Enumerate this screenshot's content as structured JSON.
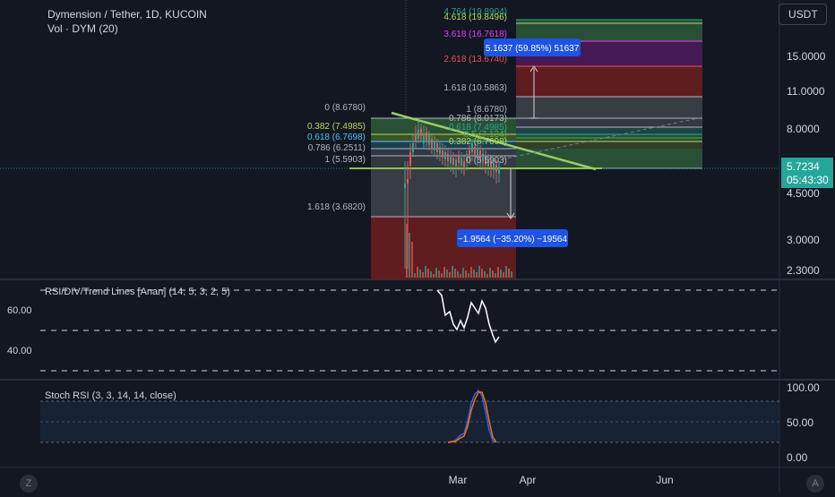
{
  "header": {
    "title": "Dymension / Tether, 1D, KUCOIN",
    "volume": "Vol · DYM (20)",
    "currency_button": "USDT"
  },
  "price_axis": {
    "ticks": [
      "15.0000",
      "11.0000",
      "8.0000",
      "4.5000",
      "3.0000",
      "2.3000"
    ],
    "current_price": "5.7234",
    "countdown": "05:43:30",
    "current_color": "#26a69a"
  },
  "fib_left": {
    "levels": [
      {
        "label": "0 (8.6780)",
        "color": "#b2b5be"
      },
      {
        "label": "0.382 (7.4985)",
        "color": "#b6d85a"
      },
      {
        "label": "0.618 (6.7698)",
        "color": "#4fc3f7"
      },
      {
        "label": "0.786 (6.2511)",
        "color": "#b2b5be"
      },
      {
        "label": "1 (5.5903)",
        "color": "#b2b5be"
      },
      {
        "label": "1.618 (3.6820)",
        "color": "#b2b5be"
      }
    ]
  },
  "fib_right": {
    "levels": [
      {
        "label": "4.764 (19.8904)",
        "color": "#26a69a"
      },
      {
        "label": "4.618 (19.8496)",
        "color": "#b6d85a"
      },
      {
        "label": "3.618 (16.7618)",
        "color": "#e040fb"
      },
      {
        "label": "2.618 (13.6740)",
        "color": "#ef5350"
      },
      {
        "label": "1.618 (10.5863)",
        "color": "#b2b5be"
      },
      {
        "label": "1 (8.6780)",
        "color": "#b2b5be"
      },
      {
        "label": "0.786 (8.0173)",
        "color": "#b2b5be"
      },
      {
        "label": "0.618 (7.4985)",
        "color": "#26a69a"
      },
      {
        "label": "0.5 (7.134)",
        "color": "#4caf50"
      },
      {
        "label": "0.382 (6.7698)",
        "color": "#b6d85a"
      },
      {
        "label": "0 (5.5903)",
        "color": "#b2b5be"
      }
    ]
  },
  "measure_up": "5.1637 (59.85%) 51637",
  "measure_down": "−1.9564 (−35.20%) −19564",
  "rsi": {
    "title": "RSI/DIV/Trend Lines [Anan] (14, 5, 3, 2, 5)",
    "ticks": [
      "60.00",
      "40.00"
    ]
  },
  "stoch": {
    "title": "Stoch RSI (3, 3, 14, 14, close)",
    "ticks": [
      "100.00",
      "50.00",
      "0.00"
    ]
  },
  "time_axis": [
    "Mar",
    "Apr",
    "Jun"
  ],
  "corner_left": "Z",
  "corner_right": "A",
  "chart_data": {
    "type": "candlestick",
    "symbol": "Dymension / Tether, 1D, KUCOIN",
    "price_ticks": [
      15.0,
      11.0,
      8.0,
      4.5,
      3.0,
      2.3
    ],
    "last_price": 5.7234,
    "fib_retracement_left": [
      8.678,
      7.4985,
      6.7698,
      6.2511,
      5.5903,
      3.682
    ],
    "fib_extension_right": [
      19.8904,
      19.8496,
      16.7618,
      13.674,
      10.5863,
      8.678,
      8.0173,
      7.4985,
      7.134,
      6.7698,
      5.5903
    ],
    "rsi_ticks": [
      60,
      40
    ],
    "stoch_ticks": [
      100,
      50,
      0
    ]
  }
}
